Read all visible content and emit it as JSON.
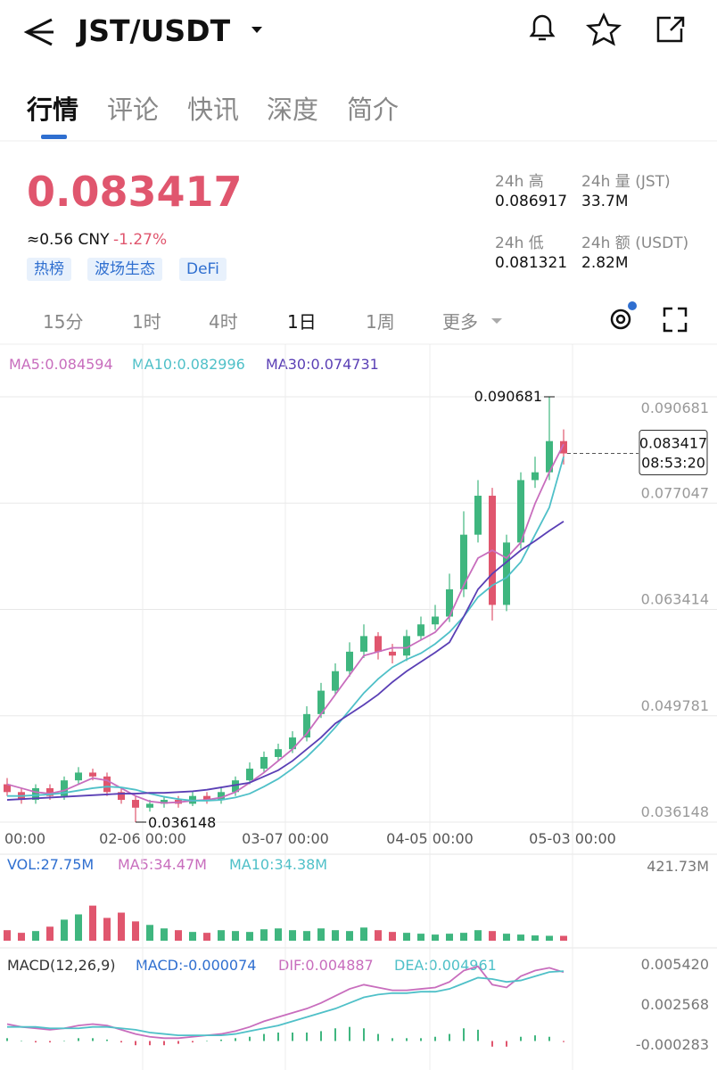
{
  "header": {
    "pair": "JST/USDT"
  },
  "tabs": {
    "items": [
      "行情",
      "评论",
      "快讯",
      "深度",
      "简介"
    ],
    "active": 0
  },
  "price": {
    "value": "0.083417",
    "cny": "≈0.56 CNY",
    "change": "-1.27%"
  },
  "tags": [
    "热榜",
    "波场生态",
    "DeFi"
  ],
  "stats": {
    "high_label": "24h 高",
    "high": "0.086917",
    "vol_label": "24h 量 (JST)",
    "vol": "33.7M",
    "low_label": "24h 低",
    "low": "0.081321",
    "amount_label": "24h 额 (USDT)",
    "amount": "2.82M"
  },
  "intervals": {
    "items": [
      "15分",
      "1时",
      "4时",
      "1日",
      "1周",
      "更多"
    ],
    "active": 3
  },
  "chart_data": {
    "type": "candlestick",
    "ma_legend": [
      "MA5:0.084594",
      "MA10:0.082996",
      "MA30:0.074731"
    ],
    "up_color": "#3fb67f",
    "down_color": "#e0566e",
    "x_labels": [
      "00:00",
      "02-06 00:00",
      "03-07 00:00",
      "04-05 00:00",
      "05-03 00:00"
    ],
    "ylim": [
      0.035805,
      0.096969
    ],
    "yticks": [
      0.090681,
      0.077047,
      0.063414,
      0.049781,
      0.036148
    ],
    "high_note": "0.090681",
    "low_note": "0.036148",
    "last_time": "08:53:20",
    "open": [
      0.041,
      0.04,
      0.039,
      0.0405,
      0.0395,
      0.0415,
      0.0425,
      0.042,
      0.04,
      0.039,
      0.038,
      0.0385,
      0.039,
      0.0385,
      0.0395,
      0.039,
      0.04,
      0.0415,
      0.043,
      0.0445,
      0.0455,
      0.047,
      0.05,
      0.053,
      0.0555,
      0.058,
      0.06,
      0.058,
      0.0575,
      0.06,
      0.0615,
      0.0625,
      0.066,
      0.073,
      0.078,
      0.064,
      0.072,
      0.08,
      0.081,
      0.085
    ],
    "high": [
      0.0418,
      0.0405,
      0.041,
      0.041,
      0.042,
      0.0432,
      0.043,
      0.0425,
      0.0405,
      0.0395,
      0.039,
      0.0395,
      0.0395,
      0.04,
      0.04,
      0.0405,
      0.042,
      0.0438,
      0.0452,
      0.0462,
      0.0478,
      0.051,
      0.054,
      0.0565,
      0.0592,
      0.0615,
      0.0605,
      0.059,
      0.0608,
      0.0625,
      0.064,
      0.068,
      0.076,
      0.08,
      0.079,
      0.073,
      0.081,
      0.083,
      0.090681,
      0.0865
    ],
    "low": [
      0.0395,
      0.0385,
      0.0385,
      0.039,
      0.039,
      0.041,
      0.0415,
      0.0395,
      0.0385,
      0.036148,
      0.0375,
      0.038,
      0.038,
      0.0382,
      0.0385,
      0.0385,
      0.0395,
      0.041,
      0.0425,
      0.044,
      0.045,
      0.0465,
      0.0495,
      0.0525,
      0.0548,
      0.0572,
      0.057,
      0.0565,
      0.0568,
      0.0595,
      0.0608,
      0.0618,
      0.065,
      0.072,
      0.062,
      0.0632,
      0.0712,
      0.079,
      0.08,
      0.082
    ],
    "close": [
      0.04,
      0.039,
      0.0405,
      0.0395,
      0.0415,
      0.0425,
      0.042,
      0.04,
      0.039,
      0.038,
      0.0385,
      0.039,
      0.0385,
      0.0395,
      0.039,
      0.04,
      0.0415,
      0.043,
      0.0445,
      0.0455,
      0.047,
      0.05,
      0.053,
      0.0555,
      0.058,
      0.06,
      0.058,
      0.0575,
      0.06,
      0.0615,
      0.0625,
      0.066,
      0.073,
      0.078,
      0.064,
      0.072,
      0.08,
      0.081,
      0.085,
      0.083417
    ],
    "ma": [
      {
        "color": "#c86dbd",
        "values": [
          0.041,
          0.0405,
          0.04,
          0.0398,
          0.0402,
          0.041,
          0.0418,
          0.0415,
          0.0405,
          0.0395,
          0.0388,
          0.0386,
          0.0387,
          0.0389,
          0.039,
          0.0393,
          0.04,
          0.0412,
          0.0425,
          0.044,
          0.0455,
          0.0475,
          0.05,
          0.0525,
          0.055,
          0.0575,
          0.058,
          0.0585,
          0.0585,
          0.0595,
          0.0605,
          0.0625,
          0.0665,
          0.07,
          0.071,
          0.07,
          0.072,
          0.077,
          0.081,
          0.0846
        ]
      },
      {
        "color": "#4fc0c8",
        "values": [
          0.0395,
          0.0395,
          0.0396,
          0.0397,
          0.0399,
          0.0402,
          0.0405,
          0.0407,
          0.0406,
          0.0403,
          0.0398,
          0.0394,
          0.0391,
          0.0389,
          0.0389,
          0.039,
          0.0393,
          0.0398,
          0.0407,
          0.0417,
          0.043,
          0.0445,
          0.0463,
          0.0483,
          0.0505,
          0.0527,
          0.0545,
          0.056,
          0.057,
          0.0578,
          0.059,
          0.0605,
          0.0625,
          0.065,
          0.0665,
          0.0675,
          0.0695,
          0.073,
          0.0765,
          0.083
        ]
      },
      {
        "color": "#5a3fb5",
        "values": [
          0.039,
          0.0391,
          0.0392,
          0.0393,
          0.0394,
          0.0395,
          0.0396,
          0.0397,
          0.0398,
          0.0398,
          0.0399,
          0.0399,
          0.04,
          0.0401,
          0.0403,
          0.0406,
          0.0409,
          0.0412,
          0.042,
          0.0428,
          0.044,
          0.0455,
          0.047,
          0.0488,
          0.05,
          0.0512,
          0.0525,
          0.0541,
          0.0555,
          0.0567,
          0.0579,
          0.0592,
          0.0625,
          0.066,
          0.068,
          0.0695,
          0.071,
          0.0722,
          0.0735,
          0.0747
        ]
      }
    ],
    "vol_legend": [
      "VOL:27.75M",
      "MA5:34.47M",
      "MA10:34.38M"
    ],
    "vol_ylim": [
      0,
      421.73
    ],
    "vol_ticks": [
      {
        "value": 421.73,
        "label": "421.73M"
      }
    ],
    "volume": [
      60,
      45,
      55,
      80,
      120,
      150,
      200,
      130,
      160,
      110,
      90,
      70,
      60,
      50,
      45,
      60,
      55,
      50,
      65,
      70,
      60,
      55,
      70,
      60,
      55,
      75,
      60,
      50,
      45,
      40,
      35,
      40,
      45,
      60,
      55,
      40,
      35,
      30,
      28,
      27.75
    ],
    "macd_legend": [
      "MACD(12,26,9)",
      "MACD:-0.000074",
      "DIF:0.004887",
      "DEA:0.004961"
    ],
    "macd_ylim": [
      -0.0013,
      0.0063
    ],
    "macd_ticks": [
      {
        "value": 0.00542,
        "label": "0.005420"
      },
      0.002568,
      -0.000283
    ],
    "macd": [
      0.0002,
      0,
      -0.0001,
      -0.0001,
      0,
      0.0002,
      0.0002,
      0.0001,
      -0.0001,
      -0.0003,
      -0.0003,
      -0.0003,
      -0.0002,
      -0.0001,
      0,
      0.0001,
      0.0002,
      0.0003,
      0.0005,
      0.0006,
      0.0006,
      0.0006,
      0.0007,
      0.0009,
      0.001,
      0.0009,
      0.0005,
      0.0002,
      0.0002,
      0.0002,
      0.0003,
      0.0005,
      0.0009,
      0.0008,
      -0.0004,
      -0.0004,
      0.0003,
      0.0004,
      0.0003,
      -7.4e-05
    ],
    "dif": {
      "color": "#c86dbd",
      "values": [
        0.0012,
        0.001,
        0.0009,
        0.0008,
        0.0009,
        0.0011,
        0.0012,
        0.0011,
        0.0008,
        0.0005,
        0.0003,
        0.0002,
        0.0002,
        0.0003,
        0.0004,
        0.0005,
        0.0007,
        0.001,
        0.0014,
        0.0017,
        0.002,
        0.0023,
        0.0027,
        0.0032,
        0.0037,
        0.004,
        0.0038,
        0.0036,
        0.0036,
        0.0037,
        0.0038,
        0.0042,
        0.005,
        0.0053,
        0.004,
        0.0038,
        0.0046,
        0.005,
        0.0052,
        0.004887
      ]
    },
    "dea": {
      "color": "#4fc0c8",
      "values": [
        0.001,
        0.001,
        0.001,
        0.0009,
        0.0009,
        0.0009,
        0.001,
        0.001,
        0.0009,
        0.0008,
        0.0006,
        0.0005,
        0.0004,
        0.0004,
        0.0004,
        0.0004,
        0.0005,
        0.0007,
        0.0009,
        0.0011,
        0.0014,
        0.0017,
        0.002,
        0.0023,
        0.0027,
        0.0031,
        0.0033,
        0.0034,
        0.0034,
        0.0035,
        0.0035,
        0.0037,
        0.0041,
        0.0045,
        0.0044,
        0.0042,
        0.0043,
        0.0046,
        0.0049,
        0.004961
      ]
    }
  }
}
